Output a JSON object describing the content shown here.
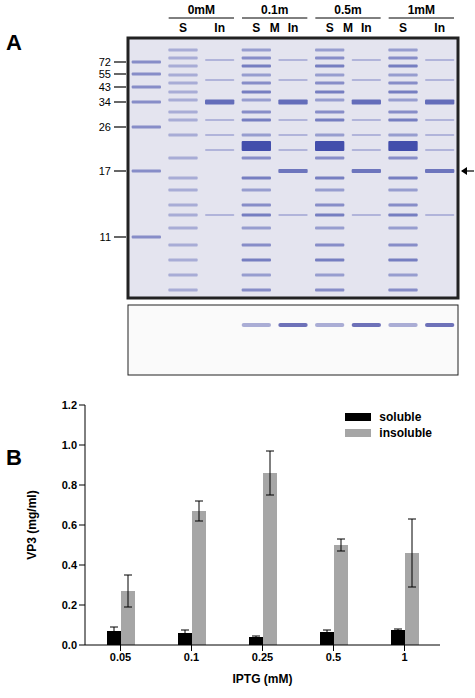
{
  "panel_labels": [
    "A",
    "B"
  ],
  "gel": {
    "groups": [
      {
        "label": "0mM",
        "lanes": [
          "S",
          "In"
        ]
      },
      {
        "label": "0.1m",
        "lanes": [
          "S",
          "M",
          "In"
        ]
      },
      {
        "label": "0.5m",
        "lanes": [
          "S",
          "M",
          "In"
        ]
      },
      {
        "label": "1mM",
        "lanes": [
          "S",
          "In"
        ]
      }
    ],
    "markers": [
      72,
      55,
      43,
      34,
      26,
      17,
      11
    ]
  },
  "chart_data": {
    "type": "bar",
    "categories": [
      "0.05",
      "0.1",
      "0.25",
      "0.5",
      "1"
    ],
    "series": [
      {
        "name": "soluble",
        "color": "#000000",
        "values": [
          0.07,
          0.06,
          0.04,
          0.065,
          0.075
        ],
        "errors": [
          0.02,
          0.015,
          0.005,
          0.01,
          0.005
        ]
      },
      {
        "name": "insoluble",
        "color": "#a6a6a6",
        "values": [
          0.27,
          0.67,
          0.86,
          0.5,
          0.46
        ],
        "errors": [
          0.08,
          0.05,
          0.11,
          0.03,
          0.17
        ]
      }
    ],
    "x_label": "IPTG (mM)",
    "y_label": "VP3 (mg/ml)",
    "ylim": [
      0,
      1.2
    ],
    "yticks": [
      {
        "value": 0,
        "label": "0.0"
      },
      {
        "value": 0.2,
        "label": "0.2"
      },
      {
        "value": 0.4,
        "label": "0.4"
      },
      {
        "value": 0.6,
        "label": "0.6"
      },
      {
        "value": 0.8,
        "label": "0.8"
      },
      {
        "value": 1,
        "label": "1.0"
      },
      {
        "value": 1.2,
        "label": "1.2"
      }
    ],
    "legend": "upper right"
  }
}
